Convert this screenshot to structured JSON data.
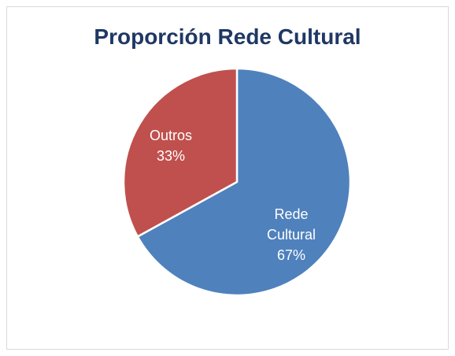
{
  "chart_data": {
    "type": "pie",
    "title": "Proporción Rede Cultural",
    "slices": [
      {
        "label_lines": [
          "Rede",
          "Cultural"
        ],
        "value": 67,
        "percent_label": "67%",
        "color": "#4f81bd"
      },
      {
        "label_lines": [
          "Outros"
        ],
        "value": 33,
        "percent_label": "33%",
        "color": "#c0504d"
      }
    ],
    "start_angle_deg": 0,
    "direction": "clockwise",
    "legend": "none"
  }
}
